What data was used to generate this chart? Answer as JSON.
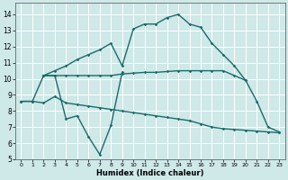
{
  "xlabel": "Humidex (Indice chaleur)",
  "xlim": [
    -0.5,
    23.5
  ],
  "ylim": [
    5,
    14.7
  ],
  "yticks": [
    5,
    6,
    7,
    8,
    9,
    10,
    11,
    12,
    13,
    14
  ],
  "xticks": [
    0,
    1,
    2,
    3,
    4,
    5,
    6,
    7,
    8,
    9,
    10,
    11,
    12,
    13,
    14,
    15,
    16,
    17,
    18,
    19,
    20,
    21,
    22,
    23
  ],
  "bg_color": "#cfe8e8",
  "line_color": "#1a6b6b",
  "grid_color": "#ffffff",
  "line_arch_x": [
    2,
    3,
    4,
    5,
    6,
    7,
    8,
    9,
    10,
    11,
    12,
    13,
    14,
    15,
    16,
    17,
    18,
    19,
    20,
    21,
    22,
    23
  ],
  "line_arch_y": [
    10.2,
    10.5,
    10.8,
    11.2,
    11.5,
    11.8,
    12.2,
    10.8,
    13.1,
    13.4,
    13.4,
    13.8,
    14.0,
    13.4,
    13.2,
    12.2,
    11.5,
    10.8,
    9.9,
    8.6,
    7.0,
    6.7
  ],
  "line_flat_x": [
    2,
    3,
    4,
    5,
    6,
    7,
    8,
    9,
    10,
    11,
    12,
    13,
    14,
    15,
    16,
    17,
    18,
    19,
    20
  ],
  "line_flat_y": [
    10.2,
    10.2,
    10.2,
    10.2,
    10.2,
    10.2,
    10.2,
    10.3,
    10.35,
    10.4,
    10.4,
    10.45,
    10.5,
    10.5,
    10.5,
    10.5,
    10.5,
    10.2,
    9.9
  ],
  "line_zigzag_x": [
    0,
    1,
    2,
    3,
    4,
    5,
    6,
    7,
    8,
    9
  ],
  "line_zigzag_y": [
    8.6,
    8.6,
    10.2,
    10.2,
    7.5,
    7.7,
    6.4,
    5.3,
    7.1,
    10.4
  ],
  "line_decline_x": [
    0,
    1,
    2,
    3,
    4,
    5,
    6,
    7,
    8,
    9,
    10,
    11,
    12,
    13,
    14,
    15,
    16,
    17,
    18,
    19,
    20,
    21,
    22,
    23
  ],
  "line_decline_y": [
    8.6,
    8.6,
    8.5,
    8.9,
    8.5,
    8.4,
    8.3,
    8.2,
    8.1,
    8.0,
    7.9,
    7.8,
    7.7,
    7.6,
    7.5,
    7.4,
    7.2,
    7.0,
    6.9,
    6.85,
    6.8,
    6.75,
    6.7,
    6.65
  ]
}
